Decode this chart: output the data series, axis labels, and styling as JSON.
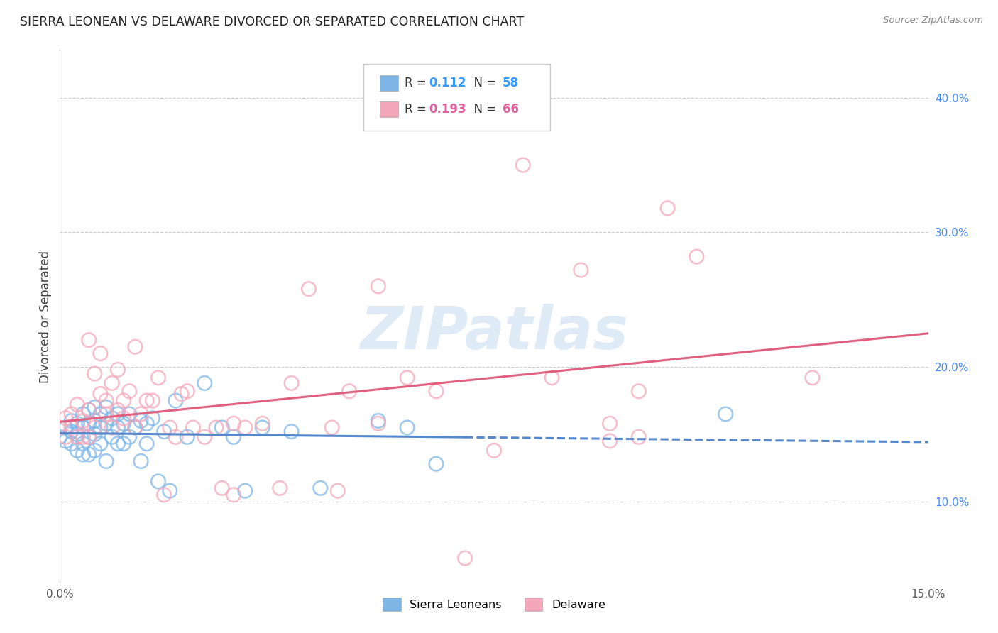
{
  "title": "SIERRA LEONEAN VS DELAWARE DIVORCED OR SEPARATED CORRELATION CHART",
  "source": "Source: ZipAtlas.com",
  "ylabel": "Divorced or Separated",
  "ylabel_right_vals": [
    0.1,
    0.2,
    0.3,
    0.4
  ],
  "xmin": 0.0,
  "xmax": 0.15,
  "ymin": 0.04,
  "ymax": 0.435,
  "sierra_color": "#7EB6E8",
  "delaware_color": "#F4A7B9",
  "sierra_line_color": "#5588CC",
  "delaware_line_color": "#E06080",
  "watermark_color": "#C8DCF0",
  "sierra_x": [
    0.0,
    0.001,
    0.001,
    0.002,
    0.002,
    0.002,
    0.003,
    0.003,
    0.003,
    0.004,
    0.004,
    0.004,
    0.004,
    0.005,
    0.005,
    0.005,
    0.005,
    0.006,
    0.006,
    0.006,
    0.006,
    0.007,
    0.007,
    0.007,
    0.008,
    0.008,
    0.008,
    0.009,
    0.009,
    0.01,
    0.01,
    0.01,
    0.011,
    0.011,
    0.012,
    0.012,
    0.013,
    0.014,
    0.014,
    0.015,
    0.015,
    0.016,
    0.017,
    0.018,
    0.019,
    0.02,
    0.022,
    0.025,
    0.028,
    0.03,
    0.032,
    0.035,
    0.04,
    0.045,
    0.055,
    0.06,
    0.065,
    0.115
  ],
  "sierra_y": [
    0.148,
    0.155,
    0.145,
    0.152,
    0.16,
    0.143,
    0.15,
    0.158,
    0.138,
    0.165,
    0.155,
    0.143,
    0.135,
    0.168,
    0.158,
    0.148,
    0.135,
    0.17,
    0.16,
    0.15,
    0.138,
    0.165,
    0.155,
    0.143,
    0.17,
    0.158,
    0.13,
    0.162,
    0.148,
    0.165,
    0.155,
    0.143,
    0.158,
    0.143,
    0.165,
    0.148,
    0.155,
    0.16,
    0.13,
    0.158,
    0.143,
    0.162,
    0.115,
    0.152,
    0.108,
    0.175,
    0.148,
    0.188,
    0.155,
    0.148,
    0.108,
    0.155,
    0.152,
    0.11,
    0.16,
    0.155,
    0.128,
    0.165
  ],
  "delaware_x": [
    0.0,
    0.001,
    0.001,
    0.002,
    0.002,
    0.003,
    0.003,
    0.004,
    0.004,
    0.005,
    0.005,
    0.005,
    0.006,
    0.006,
    0.007,
    0.007,
    0.008,
    0.008,
    0.009,
    0.009,
    0.01,
    0.01,
    0.011,
    0.011,
    0.012,
    0.013,
    0.013,
    0.014,
    0.015,
    0.016,
    0.017,
    0.018,
    0.019,
    0.02,
    0.021,
    0.022,
    0.023,
    0.025,
    0.027,
    0.028,
    0.03,
    0.032,
    0.035,
    0.038,
    0.04,
    0.043,
    0.047,
    0.05,
    0.055,
    0.06,
    0.065,
    0.07,
    0.075,
    0.08,
    0.085,
    0.09,
    0.095,
    0.1,
    0.105,
    0.11,
    0.095,
    0.03,
    0.048,
    0.055,
    0.13,
    0.1
  ],
  "delaware_y": [
    0.155,
    0.162,
    0.148,
    0.165,
    0.155,
    0.172,
    0.148,
    0.16,
    0.148,
    0.22,
    0.168,
    0.148,
    0.195,
    0.155,
    0.21,
    0.18,
    0.165,
    0.175,
    0.188,
    0.155,
    0.198,
    0.168,
    0.175,
    0.162,
    0.182,
    0.155,
    0.215,
    0.165,
    0.175,
    0.175,
    0.192,
    0.105,
    0.155,
    0.148,
    0.18,
    0.182,
    0.155,
    0.148,
    0.155,
    0.11,
    0.158,
    0.155,
    0.158,
    0.11,
    0.188,
    0.258,
    0.155,
    0.182,
    0.158,
    0.192,
    0.182,
    0.058,
    0.138,
    0.35,
    0.192,
    0.272,
    0.158,
    0.182,
    0.318,
    0.282,
    0.145,
    0.105,
    0.108,
    0.26,
    0.192,
    0.148
  ]
}
